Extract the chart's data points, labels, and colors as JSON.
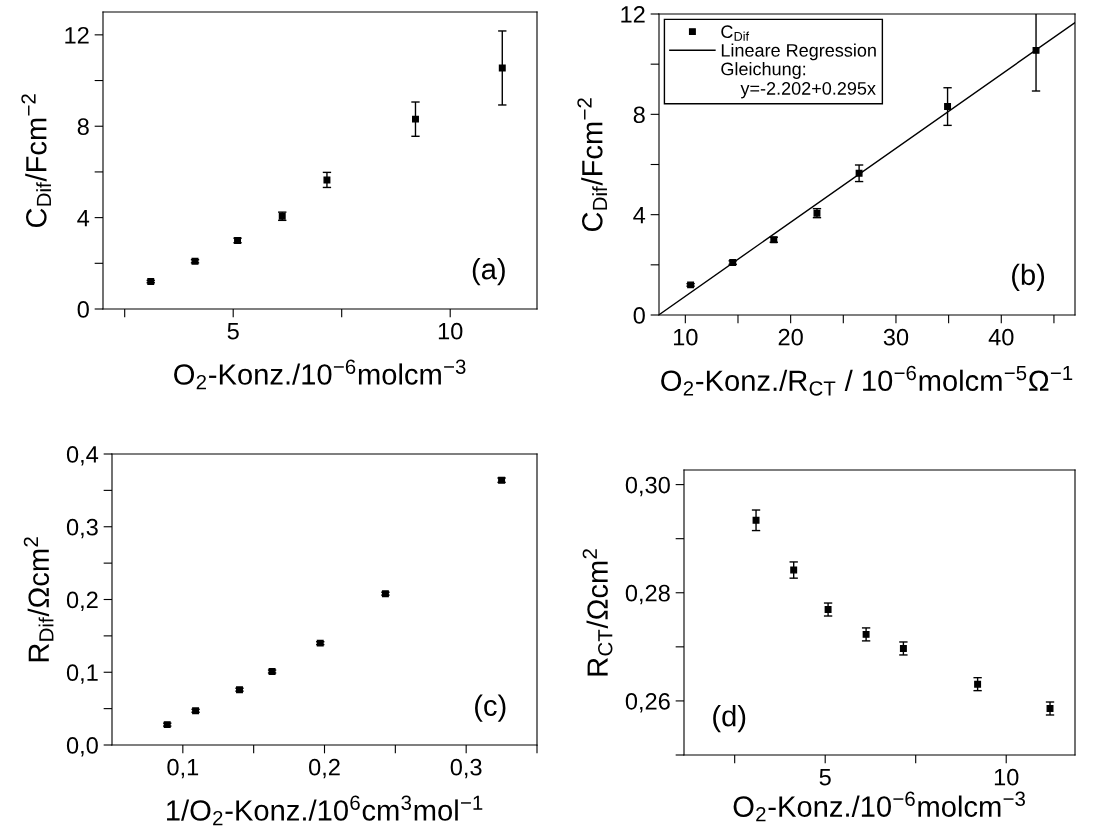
{
  "chart_data": [
    {
      "type": "scatter",
      "xlabel": "O$_{2}$-Konz./10$^{−6}$molcm$^{−3}$",
      "ylabel": "C$_{Dif}$/Fcm$^{−2}$",
      "annotations": [
        "(a)"
      ],
      "grid": false,
      "legend": false,
      "xlim": [
        2,
        12
      ],
      "xticks": [
        {
          "value": 2.5,
          "label": null
        },
        5,
        {
          "value": 7.5,
          "label": null
        },
        10
      ],
      "ylim": [
        0,
        13
      ],
      "yticks": [
        0,
        {
          "value": 2,
          "label": null
        },
        4,
        {
          "value": 6,
          "label": null
        },
        8,
        {
          "value": 10,
          "label": null
        },
        12
      ],
      "series": [
        {
          "color": "#000000",
          "marker": "square",
          "x": [
            3.1,
            4.12,
            5.1,
            6.13,
            7.16,
            9.2,
            11.2
          ],
          "values": [
            1.2,
            2.09,
            3.0,
            4.06,
            5.65,
            8.31,
            10.55
          ],
          "errors": [
            0.05,
            0.07,
            0.1,
            0.18,
            0.33,
            0.75,
            1.62
          ]
        }
      ]
    },
    {
      "type": "scatter",
      "xlabel": "O$_{2}$-Konz./R$_{CT}$ / 10$^{−6}$molcm$^{−5}$Ω$^{−1}$",
      "ylabel": "C$_{Dif}$/Fcm$^{−2}$",
      "annotations": [
        "(b)",
        "Gleichung:\n    y=-2.202+0.295x"
      ],
      "grid": false,
      "legend": "top left",
      "xlim": [
        7.5,
        47
      ],
      "xticks": [
        10,
        {
          "value": 15,
          "label": null
        },
        20,
        {
          "value": 25,
          "label": null
        },
        30,
        {
          "value": 35,
          "label": null
        },
        40,
        {
          "value": 45,
          "label": null
        }
      ],
      "ylim": [
        0,
        12
      ],
      "yticks": [
        0,
        {
          "value": 2,
          "label": null
        },
        4,
        {
          "value": 6,
          "label": null
        },
        8,
        {
          "value": 10,
          "label": null
        },
        12
      ],
      "series": [
        {
          "name": "C$_{Dif}$",
          "color": "#000000",
          "marker": "square",
          "x": [
            10.5,
            14.5,
            18.4,
            22.5,
            26.5,
            34.9,
            43.3
          ],
          "values": [
            1.2,
            2.09,
            3.0,
            4.06,
            5.65,
            8.31,
            10.55
          ],
          "errors": [
            0.05,
            0.07,
            0.1,
            0.18,
            0.33,
            0.75,
            1.62
          ]
        },
        {
          "name": "Lineare Regression",
          "type": "line",
          "color": "#000000",
          "line_style": "solid",
          "x": [
            7.5,
            47
          ],
          "values": [
            0.01,
            11.66
          ]
        }
      ]
    },
    {
      "type": "scatter",
      "xlabel": "1/O$_{2}$-Konz./10$^{6}$cm$^{3}$mol$^{−1}$",
      "ylabel": "R$_{Dif}$/Ωcm$^{2}$",
      "annotations": [
        "(c)"
      ],
      "grid": false,
      "legend": false,
      "xlim": [
        0.05,
        0.35
      ],
      "xticks": [
        {
          "value": 0.1,
          "label": "0,1"
        },
        {
          "value": 0.15,
          "label": null
        },
        {
          "value": 0.2,
          "label": "0,2"
        },
        {
          "value": 0.25,
          "label": null
        },
        {
          "value": 0.3,
          "label": "0,3"
        },
        {
          "value": 0.35,
          "label": null
        }
      ],
      "ylim": [
        0,
        0.4
      ],
      "yticks": [
        {
          "value": 0,
          "label": "0,0"
        },
        {
          "value": 0.05,
          "label": null
        },
        {
          "value": 0.1,
          "label": "0,1"
        },
        {
          "value": 0.15,
          "label": null
        },
        {
          "value": 0.2,
          "label": "0,2"
        },
        {
          "value": 0.25,
          "label": null
        },
        {
          "value": 0.3,
          "label": "0,3"
        },
        {
          "value": 0.35,
          "label": null
        },
        {
          "value": 0.4,
          "label": "0,4"
        }
      ],
      "series": [
        {
          "color": "#000000",
          "marker": "square",
          "x": [
            0.089,
            0.109,
            0.14,
            0.163,
            0.197,
            0.243,
            0.325
          ],
          "values": [
            0.028,
            0.047,
            0.076,
            0.101,
            0.14,
            0.208,
            0.364
          ],
          "errors": [
            0.002,
            0.002,
            0.002,
            0.002,
            0.002,
            0.002,
            0.003
          ]
        }
      ]
    },
    {
      "type": "scatter",
      "xlabel": "O$_{2}$-Konz./10$^{−6}$molcm$^{−3}$",
      "ylabel": "R$_{CT}$/Ωcm$^{2}$",
      "annotations": [
        "(d)"
      ],
      "grid": false,
      "legend": false,
      "xlim": [
        1.1,
        11.9
      ],
      "xticks": [
        {
          "value": 2.5,
          "label": null
        },
        5,
        {
          "value": 7.5,
          "label": null
        },
        10
      ],
      "ylim": [
        0.25,
        0.3027
      ],
      "yticks": [
        {
          "value": 0.25,
          "label": null
        },
        {
          "value": 0.26,
          "label": "0,26"
        },
        {
          "value": 0.27,
          "label": null
        },
        {
          "value": 0.28,
          "label": "0,28"
        },
        {
          "value": 0.29,
          "label": null
        },
        {
          "value": 0.3,
          "label": "0,30"
        }
      ],
      "series": [
        {
          "color": "#000000",
          "marker": "square",
          "x": [
            3.09,
            4.13,
            5.08,
            6.13,
            7.16,
            9.21,
            11.21
          ],
          "values": [
            0.2934,
            0.2842,
            0.2769,
            0.2723,
            0.2697,
            0.2631,
            0.2586
          ],
          "errors": [
            0.0019,
            0.0015,
            0.0012,
            0.0012,
            0.0012,
            0.0012,
            0.0012
          ]
        }
      ]
    }
  ]
}
